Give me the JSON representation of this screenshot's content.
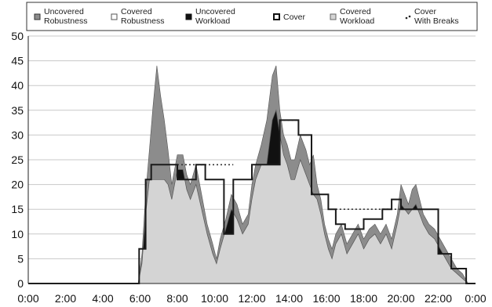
{
  "chart_data": {
    "type": "area",
    "xlim": [
      0,
      24
    ],
    "ylim": [
      0,
      50
    ],
    "y_ticks": [
      0,
      5,
      10,
      15,
      20,
      25,
      30,
      35,
      40,
      45,
      50
    ],
    "x_tick_labels": [
      "0:00",
      "2:00",
      "4:00",
      "6:00",
      "8:00",
      "10:00",
      "12:00",
      "14:00",
      "16:00",
      "18:00",
      "20:00",
      "22:00",
      "0:00"
    ],
    "grid": "horizontal",
    "legend_position": "top",
    "legend": [
      {
        "line1": "Uncovered",
        "line2": "Robustness",
        "swatch": "gray-box"
      },
      {
        "line1": "Covered",
        "line2": "Robustness",
        "swatch": "white-box"
      },
      {
        "line1": "Uncovered",
        "line2": "Workload",
        "swatch": "black-box"
      },
      {
        "line1": "Cover",
        "line2": "",
        "swatch": "thick-outline-box"
      },
      {
        "line1": "Covered",
        "line2": "Workload",
        "swatch": "light-gray-box"
      },
      {
        "line1": "Cover",
        "line2": "With Breaks",
        "swatch": "dots"
      }
    ],
    "colors": {
      "uncovered_robustness": "#8c8c8c",
      "covered_workload": "#d4d4d4",
      "uncovered_workload": "#111111",
      "cover": "#1a1a1a",
      "gridline": "#c8c8c8"
    },
    "series": [
      {
        "name": "Uncovered Robustness",
        "x": [
          0,
          5.9,
          6.1,
          6.3,
          6.5,
          6.7,
          6.9,
          7.1,
          7.3,
          7.5,
          7.7,
          8.0,
          8.3,
          8.5,
          8.7,
          9.0,
          9.3,
          9.6,
          9.9,
          10.1,
          10.3,
          10.6,
          10.9,
          11.2,
          11.5,
          11.8,
          12.0,
          12.2,
          12.5,
          12.8,
          13.1,
          13.3,
          13.5,
          13.7,
          13.9,
          14.1,
          14.3,
          14.6,
          14.9,
          15.1,
          15.3,
          15.5,
          15.7,
          15.9,
          16.1,
          16.3,
          16.5,
          16.8,
          17.1,
          17.4,
          17.7,
          18.0,
          18.3,
          18.6,
          18.9,
          19.2,
          19.5,
          19.8,
          20.0,
          20.2,
          20.4,
          20.6,
          20.8,
          21.0,
          21.2,
          21.5,
          21.8,
          22.1,
          22.4,
          22.7,
          23.0,
          23.3,
          23.6,
          24
        ],
        "values": [
          0,
          0,
          6,
          18,
          27,
          36,
          44,
          38,
          33,
          27,
          20,
          26,
          26,
          22,
          20,
          24,
          18,
          12,
          8,
          5,
          9,
          13,
          18,
          16,
          12,
          14,
          20,
          24,
          28,
          33,
          42,
          44,
          35,
          30,
          28,
          25,
          25,
          30,
          27,
          24,
          26,
          20,
          17,
          12,
          9,
          7,
          10,
          12,
          8,
          10,
          12,
          9,
          11,
          12,
          10,
          12,
          9,
          14,
          20,
          18,
          16,
          19,
          20,
          17,
          14,
          12,
          11,
          9,
          7,
          5,
          3,
          2,
          0,
          0
        ]
      },
      {
        "name": "Covered Workload",
        "x": [
          0,
          5.9,
          6.1,
          6.3,
          6.5,
          6.7,
          6.9,
          7.1,
          7.3,
          7.5,
          7.7,
          8.0,
          8.3,
          8.5,
          8.7,
          9.0,
          9.3,
          9.6,
          9.9,
          10.1,
          10.3,
          10.6,
          10.9,
          11.2,
          11.5,
          11.8,
          12.0,
          12.2,
          12.5,
          12.8,
          13.1,
          13.3,
          13.5,
          13.7,
          13.9,
          14.1,
          14.3,
          14.6,
          14.9,
          15.1,
          15.3,
          15.5,
          15.7,
          15.9,
          16.1,
          16.3,
          16.5,
          16.8,
          17.1,
          17.4,
          17.7,
          18.0,
          18.3,
          18.6,
          18.9,
          19.2,
          19.5,
          19.8,
          20.0,
          20.2,
          20.4,
          20.6,
          20.8,
          21.0,
          21.2,
          21.5,
          21.8,
          22.1,
          22.4,
          22.7,
          23.0,
          23.3,
          23.6,
          24
        ],
        "values": [
          0,
          0,
          4,
          14,
          21,
          21,
          21,
          21,
          21,
          20,
          17,
          23,
          23,
          19,
          17,
          20,
          15,
          10,
          6,
          4,
          7,
          11,
          15,
          13,
          10,
          12,
          17,
          21,
          24,
          24,
          33,
          35,
          30,
          26,
          24,
          21,
          21,
          25,
          22,
          20,
          18,
          17,
          14,
          10,
          7,
          5,
          8,
          10,
          6,
          8,
          10,
          7,
          9,
          10,
          8,
          10,
          7,
          12,
          16,
          15,
          14,
          15,
          16,
          14,
          12,
          10,
          9,
          7,
          5,
          3,
          2,
          1,
          0,
          0
        ]
      },
      {
        "name": "Cover",
        "x": [
          0,
          5.95,
          5.95,
          6.3,
          6.3,
          6.6,
          6.6,
          8.0,
          8.0,
          9.0,
          9.0,
          9.5,
          9.5,
          10.5,
          10.5,
          11.0,
          11.0,
          12.0,
          12.0,
          13.5,
          13.5,
          14.5,
          14.5,
          15.2,
          15.2,
          16.1,
          16.1,
          16.5,
          16.5,
          17.0,
          17.0,
          18.0,
          18.0,
          19.0,
          19.0,
          19.5,
          19.5,
          20.0,
          20.0,
          22.0,
          22.0,
          22.7,
          22.7,
          23.5,
          23.5,
          24
        ],
        "values": [
          0,
          0,
          7,
          7,
          21,
          21,
          24,
          24,
          21,
          21,
          24,
          24,
          21,
          21,
          10,
          10,
          21,
          21,
          24,
          24,
          33,
          33,
          30,
          30,
          18,
          18,
          15,
          15,
          12,
          12,
          11,
          11,
          13,
          13,
          15,
          15,
          17,
          17,
          15,
          15,
          6,
          6,
          3,
          3,
          0,
          0
        ]
      },
      {
        "name": "Cover With Breaks",
        "x": [
          8.0,
          11.0,
          13.5,
          14.5,
          15.2,
          16.1,
          16.5,
          20.0
        ],
        "values": [
          24,
          24,
          33,
          33,
          18,
          18,
          15,
          15
        ]
      }
    ]
  }
}
